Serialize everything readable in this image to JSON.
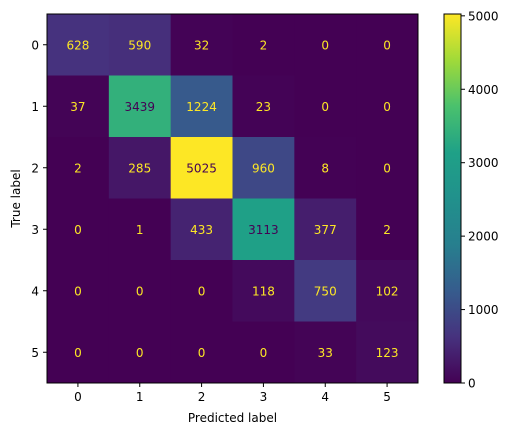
{
  "chart_data": {
    "type": "heatmap",
    "title": "",
    "xlabel": "Predicted label",
    "ylabel": "True label",
    "x_categories": [
      "0",
      "1",
      "2",
      "3",
      "4",
      "5"
    ],
    "y_categories": [
      "0",
      "1",
      "2",
      "3",
      "4",
      "5"
    ],
    "values": [
      [
        628,
        590,
        32,
        2,
        0,
        0
      ],
      [
        37,
        3439,
        1224,
        23,
        0,
        0
      ],
      [
        2,
        285,
        5025,
        960,
        8,
        0
      ],
      [
        0,
        1,
        433,
        3113,
        377,
        2
      ],
      [
        0,
        0,
        0,
        118,
        750,
        102
      ],
      [
        0,
        0,
        0,
        0,
        33,
        123
      ]
    ],
    "colormap": "viridis",
    "color_range": [
      0,
      5025
    ],
    "colorbar_ticks": [
      0,
      1000,
      2000,
      3000,
      4000,
      5000
    ],
    "text_color_on_dark": "#fde725",
    "text_color_on_light": "#440154",
    "grid": false,
    "legend": "colorbar-right"
  }
}
